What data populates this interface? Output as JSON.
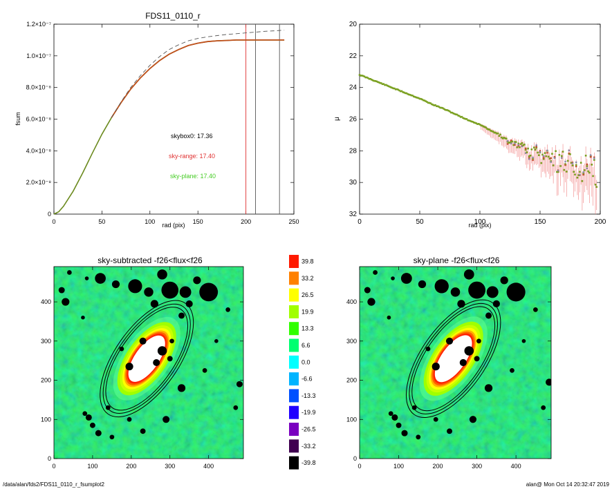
{
  "footer": {
    "path": "/data/alan/fds2/FDS11_0110_r_fsumplot2",
    "user_stamp": "alan@  Mon Oct 14 20:32:47 2019"
  },
  "colors": {
    "fsum_curve": "#c0501c",
    "fsum_curve_low": "#6b8a1e",
    "sky_range": "#e03030",
    "sky_plane": "#44cc22",
    "reference_dashed": "#555555",
    "profile_points": "#7aa020",
    "profile_errorbars": "#f08080"
  },
  "chart_data": [
    {
      "type": "line",
      "title": "FDS11_0110_r",
      "xlabel": "rad (pix)",
      "ylabel": "fsum",
      "xlim": [
        0,
        250
      ],
      "ylim": [
        0,
        1.2e-07
      ],
      "xticks": [
        0,
        50,
        100,
        150,
        200,
        250
      ],
      "xtick_labels": [
        "0",
        "50",
        "100",
        "150",
        "200",
        "250"
      ],
      "yticks": [
        0,
        2e-08,
        4e-08,
        6e-08,
        8e-08,
        1e-07,
        1.2e-07
      ],
      "ytick_labels": [
        "0",
        "2.0×10⁻⁸",
        "4.0×10⁻⁸",
        "6.0×10⁻⁸",
        "8.0×10⁻⁸",
        "1.0×10⁻⁷",
        "1.2×10⁻⁷"
      ],
      "series": [
        {
          "name": "",
          "style": "solid",
          "color_key": "fsum_curve",
          "x": [
            0,
            5,
            10,
            20,
            30,
            40,
            50,
            60,
            70,
            80,
            90,
            100,
            110,
            120,
            130,
            140,
            150,
            160,
            170,
            180,
            190,
            200,
            210,
            220,
            230,
            240
          ],
          "y": [
            0,
            1.5e-09,
            5e-09,
            1.45e-08,
            2.6e-08,
            3.85e-08,
            5.05e-08,
            6.1e-08,
            7.05e-08,
            7.9e-08,
            8.6e-08,
            9.2e-08,
            9.7e-08,
            1.01e-07,
            1.04e-07,
            1.065e-07,
            1.08e-07,
            1.09e-07,
            1.095e-07,
            1.097e-07,
            1.1e-07,
            1.1e-07,
            1.1e-07,
            1.1e-07,
            1.1e-07,
            1.1e-07
          ]
        },
        {
          "name": "",
          "style": "dashed",
          "color_key": "reference_dashed",
          "x": [
            60,
            70,
            80,
            90,
            100,
            110,
            120,
            130,
            140,
            150,
            160,
            170,
            180,
            190,
            200,
            210,
            220,
            230,
            240
          ],
          "y": [
            6.1e-08,
            7.1e-08,
            8e-08,
            8.75e-08,
            9.4e-08,
            9.95e-08,
            1.04e-07,
            1.07e-07,
            1.095e-07,
            1.11e-07,
            1.12e-07,
            1.128e-07,
            1.135e-07,
            1.14e-07,
            1.145e-07,
            1.15e-07,
            1.155e-07,
            1.158e-07,
            1.162e-07
          ]
        }
      ],
      "vlines": [
        {
          "x": 200,
          "color_key": "sky_range"
        },
        {
          "x": 210,
          "color_key": "reference_dashed"
        },
        {
          "x": 235,
          "color_key": "reference_dashed"
        }
      ],
      "annotations": [
        {
          "text": "skybox0: 17.36",
          "color": "#000000"
        },
        {
          "text": "sky-range: 17.40",
          "color": "#e03030"
        },
        {
          "text": "sky-plane: 17.40",
          "color": "#44cc22"
        }
      ],
      "grid": false
    },
    {
      "type": "scatter",
      "title": "",
      "xlabel": "rad (pix)",
      "ylabel": "μ",
      "xlim": [
        0,
        200
      ],
      "ylim": [
        32,
        20
      ],
      "inverted_y": true,
      "xticks": [
        0,
        50,
        100,
        150,
        200
      ],
      "xtick_labels": [
        "0",
        "50",
        "100",
        "150",
        "200"
      ],
      "yticks": [
        20,
        22,
        24,
        26,
        28,
        30,
        32
      ],
      "ytick_labels": [
        "20",
        "22",
        "24",
        "26",
        "28",
        "30",
        "32"
      ],
      "series": [
        {
          "name": "",
          "color_key": "profile_points",
          "x": [
            0,
            10,
            20,
            30,
            40,
            50,
            60,
            70,
            80,
            90,
            100,
            105,
            110,
            115,
            120,
            125,
            130,
            135,
            140,
            145,
            150,
            155,
            160,
            165,
            170,
            175,
            180,
            185,
            190,
            195
          ],
          "y": [
            23.2,
            23.5,
            23.8,
            24.1,
            24.4,
            24.7,
            25.05,
            25.35,
            25.7,
            26.05,
            26.35,
            26.55,
            26.75,
            26.95,
            27.2,
            27.4,
            27.6,
            27.8,
            27.95,
            28.15,
            28.3,
            28.45,
            28.55,
            28.7,
            28.8,
            29.0,
            29.1,
            29.2,
            29.3,
            29.4
          ]
        }
      ],
      "grid": false
    },
    {
      "type": "heatmap",
      "title": "sky-subtracted -f26<flux<f26",
      "xlim": [
        0,
        490
      ],
      "ylim": [
        0,
        490
      ],
      "xticks": [
        0,
        100,
        200,
        300,
        400
      ],
      "xtick_labels": [
        "0",
        "100",
        "200",
        "300",
        "400"
      ],
      "yticks": [
        0,
        100,
        200,
        300,
        400
      ],
      "ytick_labels": [
        "0",
        "100",
        "200",
        "300",
        "400"
      ],
      "ellipse": {
        "center": [
          240,
          255
        ],
        "angle_deg": 55
      },
      "grid": false
    },
    {
      "type": "heatmap",
      "title": "sky-plane -f26<flux<f26",
      "xlim": [
        0,
        490
      ],
      "ylim": [
        0,
        490
      ],
      "xticks": [
        0,
        100,
        200,
        300,
        400
      ],
      "xtick_labels": [
        "0",
        "100",
        "200",
        "300",
        "400"
      ],
      "yticks": [
        0,
        100,
        200,
        300,
        400
      ],
      "ytick_labels": [
        "0",
        "100",
        "200",
        "300",
        "400"
      ],
      "ellipse": {
        "center": [
          240,
          255
        ],
        "angle_deg": 55
      },
      "grid": false
    }
  ],
  "colorbar": {
    "labels": [
      "39.8",
      "33.2",
      "26.5",
      "19.9",
      "13.3",
      "6.6",
      "0.0",
      "-6.6",
      "-13.3",
      "-19.9",
      "-26.5",
      "-33.2",
      "-39.8"
    ],
    "colors": [
      "#ff1a00",
      "#ff8000",
      "#ffff00",
      "#a0ff00",
      "#30ff00",
      "#00ff70",
      "#00ffff",
      "#00b4ff",
      "#0050ff",
      "#2000ff",
      "#7a00c0",
      "#400050",
      "#000000"
    ]
  }
}
